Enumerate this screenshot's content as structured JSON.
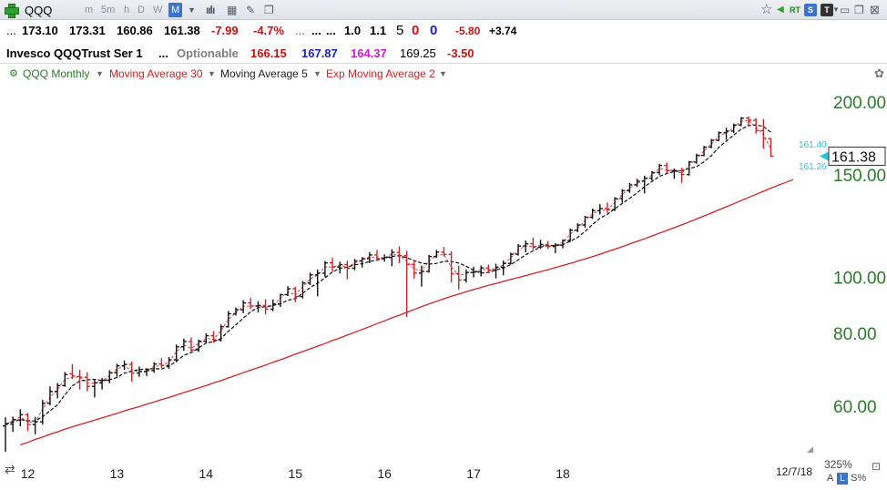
{
  "toolbar": {
    "symbol": "QQQ",
    "timeframes": [
      "m",
      "5m",
      "h",
      "D",
      "W",
      "M"
    ],
    "active_timeframe": "M",
    "rt_label": "RT",
    "s_label": "S",
    "t_label": "T"
  },
  "quote": {
    "dots": "...",
    "open": "173.10",
    "high": "173.31",
    "low": "160.86",
    "close": "161.38",
    "change": "-7.99",
    "change_pct": "-4.7%",
    "dots_green": "...",
    "dots_2": "...",
    "dots_3": "...",
    "v1": "1.0",
    "v2": "1.1",
    "count1": "5",
    "count2": "0",
    "count3": "0",
    "v3": "-5.80",
    "v4": "+3.74"
  },
  "info": {
    "name": "Invesco QQQTrust Ser 1",
    "dots": "...",
    "optionable": "Optionable",
    "v1": "166.15",
    "v2": "167.87",
    "v3": "164.37",
    "v4": "169.25",
    "v5": "-3.50"
  },
  "legend": {
    "main": "QQQ Monthly",
    "ma30": "Moving Average 30",
    "ma5": "Moving Average 5",
    "ema2": "Exp Moving Average 2"
  },
  "footer": {
    "date": "12/7/18",
    "zoom": "325%",
    "a_label": "A",
    "l_label": "L",
    "s_pct": "S%"
  },
  "chart_data": {
    "type": "ohlc",
    "title": "",
    "scale": "log",
    "grid": false,
    "ylim": [
      48,
      215
    ],
    "y_ticks": [
      "200.00",
      "150.00",
      "100.00",
      "80.00",
      "60.00"
    ],
    "y_tick_values": [
      200,
      150,
      100,
      80,
      60
    ],
    "x_ticks": [
      "12",
      "13",
      "14",
      "15",
      "16",
      "17",
      "18"
    ],
    "last_price": "161.38",
    "ma5_label": "161.40",
    "ema2_label": "161.26",
    "bars": [
      {
        "o": 55.5,
        "h": 57.4,
        "l": 50.1,
        "c": 55.9,
        "d": "Jan 12"
      },
      {
        "o": 55.9,
        "h": 57.6,
        "l": 54.2,
        "c": 56.9,
        "d": "Feb 12"
      },
      {
        "o": 56.8,
        "h": 59.3,
        "l": 55.4,
        "c": 58.0,
        "d": "Mar 12"
      },
      {
        "o": 58.0,
        "h": 58.4,
        "l": 54.4,
        "c": 55.8,
        "d": "Apr 12"
      },
      {
        "o": 55.8,
        "h": 57.5,
        "l": 53.7,
        "c": 56.4,
        "d": "May 12"
      },
      {
        "o": 56.4,
        "h": 61.5,
        "l": 55.8,
        "c": 60.7,
        "d": "Jun 12"
      },
      {
        "o": 60.7,
        "h": 64.9,
        "l": 60.2,
        "c": 63.6,
        "d": "Jul 12"
      },
      {
        "o": 63.6,
        "h": 65.8,
        "l": 61.9,
        "c": 65.1,
        "d": "Aug 12"
      },
      {
        "o": 65.1,
        "h": 68.7,
        "l": 64.8,
        "c": 68.0,
        "d": "Sep 12"
      },
      {
        "o": 68.2,
        "h": 70.9,
        "l": 66.8,
        "c": 67.6,
        "d": "Oct 12"
      },
      {
        "o": 67.5,
        "h": 69.3,
        "l": 64.1,
        "c": 67.3,
        "d": "Nov 12"
      },
      {
        "o": 67.3,
        "h": 68.6,
        "l": 63.6,
        "c": 64.9,
        "d": "Dec 12"
      },
      {
        "o": 64.9,
        "h": 66.6,
        "l": 62.1,
        "c": 65.8,
        "d": "Jan 13"
      },
      {
        "o": 65.8,
        "h": 67.1,
        "l": 64.1,
        "c": 66.5,
        "d": "Feb 13"
      },
      {
        "o": 66.5,
        "h": 69.2,
        "l": 65.7,
        "c": 68.5,
        "d": "Mar 13"
      },
      {
        "o": 68.5,
        "h": 71.0,
        "l": 67.4,
        "c": 70.4,
        "d": "Apr 13"
      },
      {
        "o": 70.4,
        "h": 71.9,
        "l": 69.3,
        "c": 70.8,
        "d": "May 13"
      },
      {
        "o": 70.8,
        "h": 71.6,
        "l": 66.1,
        "c": 68.4,
        "d": "Jun 13"
      },
      {
        "o": 68.4,
        "h": 70.2,
        "l": 67.4,
        "c": 68.8,
        "d": "Jul 13"
      },
      {
        "o": 68.8,
        "h": 69.7,
        "l": 67.6,
        "c": 69.1,
        "d": "Aug 13"
      },
      {
        "o": 69.1,
        "h": 71.4,
        "l": 68.5,
        "c": 70.9,
        "d": "Sep 13"
      },
      {
        "o": 70.9,
        "h": 72.6,
        "l": 69.8,
        "c": 70.5,
        "d": "Oct 13"
      },
      {
        "o": 70.5,
        "h": 72.9,
        "l": 69.6,
        "c": 72.1,
        "d": "Nov 13"
      },
      {
        "o": 72.1,
        "h": 76.6,
        "l": 71.4,
        "c": 75.9,
        "d": "Dec 13"
      },
      {
        "o": 75.9,
        "h": 78.4,
        "l": 74.7,
        "c": 77.5,
        "d": "Jan 14"
      },
      {
        "o": 77.5,
        "h": 78.8,
        "l": 74.4,
        "c": 75.0,
        "d": "Feb 14"
      },
      {
        "o": 75.0,
        "h": 78.1,
        "l": 74.4,
        "c": 77.6,
        "d": "Mar 14"
      },
      {
        "o": 77.6,
        "h": 80.1,
        "l": 76.9,
        "c": 79.3,
        "d": "Apr 14"
      },
      {
        "o": 79.3,
        "h": 80.8,
        "l": 77.1,
        "c": 78.0,
        "d": "May 14"
      },
      {
        "o": 78.0,
        "h": 82.9,
        "l": 77.5,
        "c": 82.2,
        "d": "Jun 14"
      },
      {
        "o": 82.2,
        "h": 87.5,
        "l": 81.9,
        "c": 86.5,
        "d": "Jul 14"
      },
      {
        "o": 86.5,
        "h": 88.7,
        "l": 85.9,
        "c": 87.9,
        "d": "Aug 14"
      },
      {
        "o": 87.9,
        "h": 91.3,
        "l": 86.7,
        "c": 90.3,
        "d": "Sep 14"
      },
      {
        "o": 90.3,
        "h": 92.1,
        "l": 88.1,
        "c": 89.2,
        "d": "Oct 14"
      },
      {
        "o": 89.2,
        "h": 90.9,
        "l": 86.9,
        "c": 89.4,
        "d": "Nov 14"
      },
      {
        "o": 89.4,
        "h": 91.6,
        "l": 86.3,
        "c": 88.1,
        "d": "Dec 14"
      },
      {
        "o": 88.1,
        "h": 91.5,
        "l": 87.4,
        "c": 89.9,
        "d": "Jan 15"
      },
      {
        "o": 89.9,
        "h": 93.6,
        "l": 88.9,
        "c": 93.3,
        "d": "Feb 15"
      },
      {
        "o": 93.3,
        "h": 96.5,
        "l": 92.8,
        "c": 95.5,
        "d": "Mar 15"
      },
      {
        "o": 95.5,
        "h": 96.3,
        "l": 90.6,
        "c": 92.6,
        "d": "Apr 15"
      },
      {
        "o": 92.6,
        "h": 98.5,
        "l": 91.9,
        "c": 97.7,
        "d": "May 15"
      },
      {
        "o": 97.7,
        "h": 101.8,
        "l": 96.9,
        "c": 100.9,
        "d": "Jun 15"
      },
      {
        "o": 100.9,
        "h": 103.1,
        "l": 92.7,
        "c": 101.6,
        "d": "Jul 15"
      },
      {
        "o": 101.6,
        "h": 106.6,
        "l": 100.1,
        "c": 105.8,
        "d": "Aug 15"
      },
      {
        "o": 105.8,
        "h": 108.0,
        "l": 102.1,
        "c": 104.1,
        "d": "Sep 15"
      },
      {
        "o": 104.1,
        "h": 106.3,
        "l": 101.5,
        "c": 105.1,
        "d": "Oct 15"
      },
      {
        "o": 105.1,
        "h": 106.7,
        "l": 99.1,
        "c": 103.6,
        "d": "Nov 15"
      },
      {
        "o": 103.6,
        "h": 107.5,
        "l": 102.8,
        "c": 106.6,
        "d": "Dec 15"
      },
      {
        "o": 106.6,
        "h": 108.2,
        "l": 103.9,
        "c": 107.6,
        "d": "Jan 16"
      },
      {
        "o": 107.6,
        "h": 110.4,
        "l": 105.7,
        "c": 109.2,
        "d": "Feb 16"
      },
      {
        "o": 109.2,
        "h": 111.4,
        "l": 106.7,
        "c": 107.6,
        "d": "Mar 16"
      },
      {
        "o": 107.6,
        "h": 109.4,
        "l": 106.3,
        "c": 108.1,
        "d": "Apr 16"
      },
      {
        "o": 108.1,
        "h": 111.7,
        "l": 104.4,
        "c": 110.3,
        "d": "May 16"
      },
      {
        "o": 110.3,
        "h": 112.9,
        "l": 105.7,
        "c": 108.9,
        "d": "Jun 16"
      },
      {
        "o": 108.9,
        "h": 111.0,
        "l": 85.4,
        "c": 105.2,
        "d": "Jul 16"
      },
      {
        "o": 105.2,
        "h": 107.0,
        "l": 99.4,
        "c": 101.6,
        "d": "Aug 16"
      },
      {
        "o": 101.6,
        "h": 104.7,
        "l": 96.3,
        "c": 102.3,
        "d": "Sep 16"
      },
      {
        "o": 102.3,
        "h": 109.2,
        "l": 101.8,
        "c": 108.5,
        "d": "Oct 16"
      },
      {
        "o": 108.5,
        "h": 111.4,
        "l": 107.9,
        "c": 110.4,
        "d": "Nov 16"
      },
      {
        "o": 110.4,
        "h": 112.7,
        "l": 108.6,
        "c": 109.4,
        "d": "Dec 16"
      },
      {
        "o": 109.4,
        "h": 110.9,
        "l": 97.9,
        "c": 101.4,
        "d": "Jan 17"
      },
      {
        "o": 101.4,
        "h": 104.7,
        "l": 95.2,
        "c": 98.9,
        "d": "Feb 17"
      },
      {
        "o": 98.9,
        "h": 103.1,
        "l": 97.9,
        "c": 101.9,
        "d": "Mar 17"
      },
      {
        "o": 101.9,
        "h": 104.2,
        "l": 99.9,
        "c": 102.1,
        "d": "Apr 17"
      },
      {
        "o": 102.1,
        "h": 104.7,
        "l": 100.3,
        "c": 103.7,
        "d": "May 17"
      },
      {
        "o": 103.7,
        "h": 105.0,
        "l": 101.8,
        "c": 102.8,
        "d": "Jun 17"
      },
      {
        "o": 102.8,
        "h": 105.5,
        "l": 99.5,
        "c": 104.0,
        "d": "Jul 17"
      },
      {
        "o": 104.0,
        "h": 106.8,
        "l": 100.7,
        "c": 105.6,
        "d": "Aug 17"
      },
      {
        "o": 105.6,
        "h": 110.2,
        "l": 105.1,
        "c": 109.5,
        "d": "Sep 17"
      },
      {
        "o": 109.5,
        "h": 114.0,
        "l": 108.9,
        "c": 113.1,
        "d": "Oct 17"
      },
      {
        "o": 113.1,
        "h": 115.6,
        "l": 110.3,
        "c": 114.1,
        "d": "Nov 17"
      },
      {
        "o": 114.1,
        "h": 116.9,
        "l": 111.5,
        "c": 112.6,
        "d": "Dec 17"
      },
      {
        "o": 112.6,
        "h": 115.9,
        "l": 111.8,
        "c": 113.8,
        "d": "Jan 18"
      },
      {
        "o": 113.8,
        "h": 115.4,
        "l": 111.7,
        "c": 112.9,
        "d": "Feb 18"
      },
      {
        "o": 112.9,
        "h": 114.4,
        "l": 109.9,
        "c": 113.5,
        "d": "Mar 18"
      },
      {
        "o": 113.5,
        "h": 116.1,
        "l": 112.1,
        "c": 115.6,
        "d": "Apr 18"
      },
      {
        "o": 115.6,
        "h": 121.2,
        "l": 115.0,
        "c": 120.4,
        "d": "May 18"
      },
      {
        "o": 120.4,
        "h": 123.8,
        "l": 119.5,
        "c": 122.9,
        "d": "Jun 18"
      },
      {
        "o": 122.9,
        "h": 127.4,
        "l": 121.5,
        "c": 126.8,
        "d": "Jul 18"
      },
      {
        "o": 126.8,
        "h": 131.2,
        "l": 125.9,
        "c": 130.1,
        "d": "Aug 18"
      },
      {
        "o": 130.1,
        "h": 133.5,
        "l": 128.1,
        "c": 131.2,
        "d": "Sep 18"
      },
      {
        "o": 131.2,
        "h": 134.4,
        "l": 129.0,
        "c": 130.6,
        "d": "Oct 18"
      },
      {
        "o": 130.6,
        "h": 137.2,
        "l": 129.9,
        "c": 136.5,
        "d": "Nov 18"
      },
      {
        "o": 136.5,
        "h": 141.7,
        "l": 134.2,
        "c": 140.8,
        "d": "Dec 18"
      },
      {
        "o": 140.8,
        "h": 145.2,
        "l": 139.6,
        "c": 144.1,
        "d": "Jan 19"
      },
      {
        "o": 144.1,
        "h": 147.6,
        "l": 142.8,
        "c": 146.2,
        "d": "Feb 19"
      },
      {
        "o": 146.2,
        "h": 149.4,
        "l": 139.3,
        "c": 147.9,
        "d": "Mar 19"
      },
      {
        "o": 147.9,
        "h": 152.1,
        "l": 146.6,
        "c": 151.3,
        "d": "Apr 19"
      },
      {
        "o": 151.3,
        "h": 156.5,
        "l": 149.8,
        "c": 155.6,
        "d": "May 19"
      },
      {
        "o": 155.6,
        "h": 157.4,
        "l": 150.6,
        "c": 152.4,
        "d": "Jun 19"
      },
      {
        "o": 152.4,
        "h": 153.7,
        "l": 147.5,
        "c": 152.4,
        "d": "Jul 19"
      },
      {
        "o": 152.4,
        "h": 154.2,
        "l": 145.2,
        "c": 150.1,
        "d": "Aug 19"
      },
      {
        "o": 150.1,
        "h": 158.4,
        "l": 149.5,
        "c": 157.7,
        "d": "Sep 19"
      },
      {
        "o": 157.7,
        "h": 163.0,
        "l": 156.6,
        "c": 161.9,
        "d": "Oct 19"
      },
      {
        "o": 161.9,
        "h": 168.1,
        "l": 161.4,
        "c": 167.3,
        "d": "Nov 19"
      },
      {
        "o": 167.3,
        "h": 172.8,
        "l": 166.6,
        "c": 171.9,
        "d": "Dec 19"
      },
      {
        "o": 171.9,
        "h": 178.0,
        "l": 171.3,
        "c": 177.1,
        "d": "Jan 20"
      },
      {
        "o": 177.1,
        "h": 180.7,
        "l": 172.3,
        "c": 178.3,
        "d": "Feb 20"
      },
      {
        "o": 178.3,
        "h": 183.7,
        "l": 176.9,
        "c": 182.6,
        "d": "Mar 20"
      },
      {
        "o": 182.6,
        "h": 188.4,
        "l": 181.8,
        "c": 187.6,
        "d": "Apr 20"
      },
      {
        "o": 187.6,
        "h": 188.9,
        "l": 181.4,
        "c": 186.1,
        "d": "May 20"
      },
      {
        "o": 186.1,
        "h": 187.5,
        "l": 176.4,
        "c": 178.6,
        "d": "Jun 20"
      },
      {
        "o": 178.6,
        "h": 186.9,
        "l": 166.2,
        "c": 173.1,
        "d": "Jul 20"
      },
      {
        "o": 173.1,
        "h": 173.3,
        "l": 160.9,
        "c": 161.4,
        "d": "Aug 20"
      }
    ],
    "ma30": {
      "start_index": 2,
      "values": [
        51.5,
        52.0,
        52.6,
        53.1,
        53.7,
        54.2,
        54.8,
        55.3,
        55.8,
        56.3,
        56.8,
        57.3,
        57.8,
        58.3,
        58.9,
        59.4,
        59.9,
        60.5,
        61.0,
        61.6,
        62.1,
        62.7,
        63.3,
        63.9,
        64.5,
        65.1,
        65.8,
        66.4,
        67.1,
        67.8,
        68.5,
        69.2,
        69.9,
        70.6,
        71.4,
        72.1,
        72.9,
        73.7,
        74.5,
        75.3,
        76.1,
        76.9,
        77.8,
        78.6,
        79.5,
        80.4,
        81.3,
        82.2,
        83.2,
        84.1,
        85.1,
        86.0,
        87.0,
        88.0,
        89.0,
        89.9,
        90.9,
        91.8,
        92.7,
        93.5,
        94.4,
        95.2,
        96.0,
        96.8,
        97.5,
        98.3,
        99.1,
        99.8,
        100.6,
        101.4,
        102.2,
        103.0,
        103.8,
        104.7,
        105.6,
        106.5,
        107.5,
        108.5,
        109.5,
        110.6,
        111.7,
        112.8,
        114.0,
        115.2,
        116.4,
        117.7,
        119.0,
        120.3,
        121.6,
        123.0,
        124.4,
        125.9,
        127.4,
        128.9,
        130.5,
        132.1,
        133.7,
        135.4,
        137.1,
        138.8,
        140.5,
        142.2,
        143.9,
        145.5,
        147.1
      ]
    }
  }
}
